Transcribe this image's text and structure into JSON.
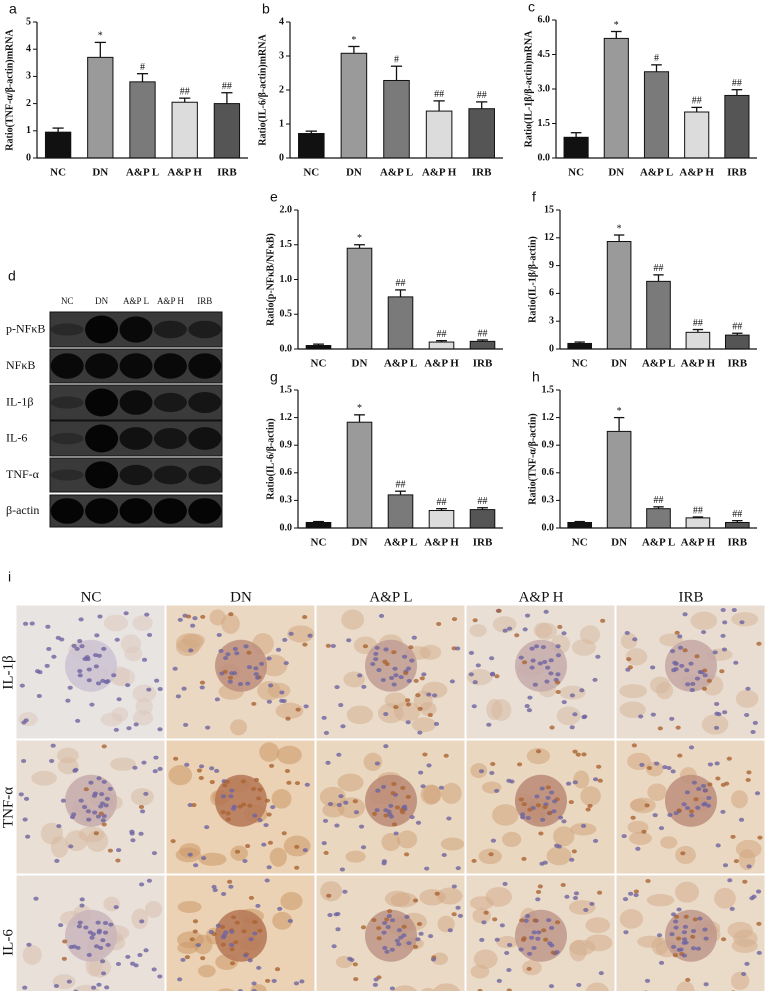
{
  "chart_data": [
    {
      "type": "bar",
      "panel": "a",
      "ylabel": "Ratio(TNF-α/β-actin)mRNA",
      "categories": [
        "NC",
        "DN",
        "A&P L",
        "A&P H",
        "IRB"
      ],
      "values": [
        0.95,
        3.7,
        2.8,
        2.05,
        2.0
      ],
      "errors": [
        0.15,
        0.55,
        0.3,
        0.15,
        0.4
      ],
      "annotations": [
        null,
        "*",
        "#",
        "##",
        "##"
      ],
      "colors": [
        "#111111",
        "#9a9a9a",
        "#7a7a7a",
        "#dcdcdc",
        "#555555"
      ],
      "ylim": [
        0,
        5
      ],
      "yticks": [
        0,
        1,
        2,
        3,
        4,
        5
      ]
    },
    {
      "type": "bar",
      "panel": "b",
      "ylabel": "Ratio(IL-6/β-actin)mRNA",
      "categories": [
        "NC",
        "DN",
        "A&P L",
        "A&P H",
        "IRB"
      ],
      "values": [
        0.72,
        3.08,
        2.28,
        1.38,
        1.45
      ],
      "errors": [
        0.07,
        0.2,
        0.42,
        0.3,
        0.2
      ],
      "annotations": [
        null,
        "*",
        "#",
        "##",
        "##"
      ],
      "colors": [
        "#111111",
        "#9a9a9a",
        "#7a7a7a",
        "#dcdcdc",
        "#555555"
      ],
      "ylim": [
        0,
        4
      ],
      "yticks": [
        0,
        1,
        2,
        3,
        4
      ]
    },
    {
      "type": "bar",
      "panel": "c",
      "ylabel": "Ratio(IL-1β/β-actin)mRNA",
      "categories": [
        "NC",
        "DN",
        "A&P L",
        "A&P H",
        "IRB"
      ],
      "values": [
        0.9,
        5.2,
        3.75,
        2.0,
        2.72
      ],
      "errors": [
        0.2,
        0.3,
        0.3,
        0.2,
        0.25
      ],
      "annotations": [
        null,
        "*",
        "#",
        "##",
        "##"
      ],
      "colors": [
        "#111111",
        "#9a9a9a",
        "#7a7a7a",
        "#dcdcdc",
        "#555555"
      ],
      "ylim": [
        0,
        6
      ],
      "yticks": [
        {
          "value": 0,
          "label": "0.0"
        },
        1.5,
        {
          "value": 3,
          "label": "3.0"
        },
        4.5,
        {
          "value": 6,
          "label": "6.0"
        }
      ]
    },
    {
      "type": "bar",
      "panel": "e",
      "ylabel": "Ratio(p-NFκB/NFκB)",
      "categories": [
        "NC",
        "DN",
        "A&P L",
        "A&P H",
        "IRB"
      ],
      "values": [
        0.05,
        1.45,
        0.75,
        0.1,
        0.11
      ],
      "errors": [
        0.02,
        0.05,
        0.1,
        0.02,
        0.02
      ],
      "annotations": [
        null,
        "*",
        "##",
        "##",
        "##"
      ],
      "colors": [
        "#111111",
        "#9a9a9a",
        "#7a7a7a",
        "#dcdcdc",
        "#555555"
      ],
      "ylim": [
        0,
        2
      ],
      "yticks": [
        {
          "value": 0,
          "label": "0.0"
        },
        0.5,
        {
          "value": 1,
          "label": "1.0"
        },
        1.5,
        {
          "value": 2,
          "label": "2.0"
        }
      ]
    },
    {
      "type": "bar",
      "panel": "f",
      "ylabel": "Ratio(IL-1β/β-actin)",
      "categories": [
        "NC",
        "DN",
        "A&P L",
        "A&P H",
        "IRB"
      ],
      "values": [
        0.6,
        11.6,
        7.3,
        1.8,
        1.5
      ],
      "errors": [
        0.15,
        0.7,
        0.7,
        0.3,
        0.2
      ],
      "annotations": [
        null,
        "*",
        "##",
        "##",
        "##"
      ],
      "colors": [
        "#111111",
        "#9a9a9a",
        "#7a7a7a",
        "#dcdcdc",
        "#555555"
      ],
      "ylim": [
        0,
        15
      ],
      "yticks": [
        0,
        3,
        6,
        9,
        12,
        15
      ]
    },
    {
      "type": "bar",
      "panel": "g",
      "ylabel": "Ratio(IL-6/β-actin)",
      "categories": [
        "NC",
        "DN",
        "A&P L",
        "A&P H",
        "IRB"
      ],
      "values": [
        0.06,
        1.15,
        0.36,
        0.19,
        0.2
      ],
      "errors": [
        0.01,
        0.08,
        0.04,
        0.02,
        0.02
      ],
      "annotations": [
        null,
        "*",
        "##",
        "##",
        "##"
      ],
      "colors": [
        "#111111",
        "#9a9a9a",
        "#7a7a7a",
        "#dcdcdc",
        "#555555"
      ],
      "ylim": [
        0,
        1.5
      ],
      "yticks": [
        {
          "value": 0,
          "label": "0.0"
        },
        0.3,
        0.6,
        0.9,
        1.2,
        1.5
      ]
    },
    {
      "type": "bar",
      "panel": "h",
      "ylabel": "Ratio(TNF-α/β-actin)",
      "categories": [
        "NC",
        "DN",
        "A&P L",
        "A&P H",
        "IRB"
      ],
      "values": [
        0.06,
        1.05,
        0.21,
        0.11,
        0.06
      ],
      "errors": [
        0.01,
        0.15,
        0.02,
        0.01,
        0.02
      ],
      "annotations": [
        null,
        "*",
        "##",
        "##",
        "##"
      ],
      "colors": [
        "#111111",
        "#9a9a9a",
        "#7a7a7a",
        "#dcdcdc",
        "#555555"
      ],
      "ylim": [
        0,
        1.5
      ],
      "yticks": [
        {
          "value": 0,
          "label": "0.0"
        },
        0.3,
        0.6,
        0.9,
        1.2,
        1.5
      ]
    }
  ],
  "blot": {
    "panel": "d",
    "columns": [
      "NC",
      "DN",
      "A&P L",
      "A&P H",
      "IRB"
    ],
    "rows": [
      "p-NFκB",
      "NFκB",
      "IL-1β",
      "IL-6",
      "TNF-α",
      "β-actin"
    ]
  },
  "histology": {
    "panel": "i",
    "columns": [
      "NC",
      "DN",
      "A&P L",
      "A&P H",
      "IRB"
    ],
    "rows": [
      "IL-1β",
      "TNF-α",
      "IL-6"
    ]
  }
}
